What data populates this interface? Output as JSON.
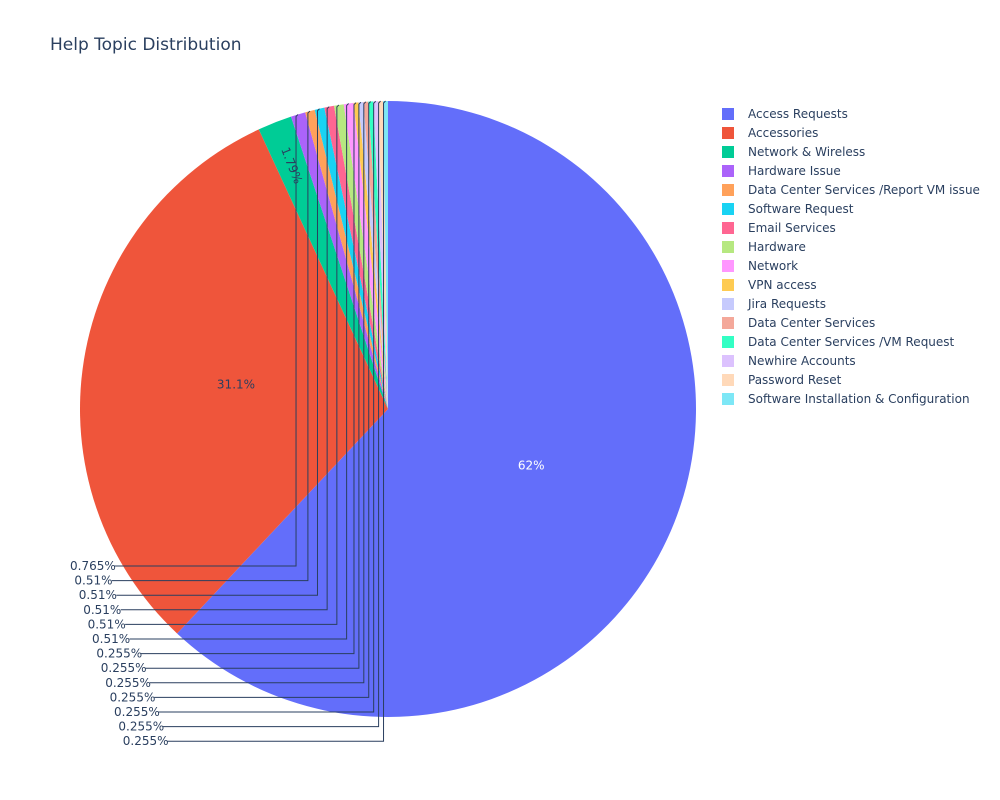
{
  "chart_data": {
    "type": "pie",
    "title": "Help Topic Distribution",
    "legend_position": "right",
    "slices": [
      {
        "label": "Access Requests",
        "value": 62,
        "text": "62%",
        "color": "#636efa"
      },
      {
        "label": "Accessories",
        "value": 31.1,
        "text": "31.1%",
        "color": "#ef553b"
      },
      {
        "label": "Network & Wireless",
        "value": 1.79,
        "text": "1.79%",
        "color": "#00cc96"
      },
      {
        "label": "Hardware Issue",
        "value": 0.765,
        "text": "0.765%",
        "color": "#ab63fa"
      },
      {
        "label": "Data Center Services /Report VM issue",
        "value": 0.51,
        "text": "0.51%",
        "color": "#ffa15a"
      },
      {
        "label": "Software Request",
        "value": 0.51,
        "text": "0.51%",
        "color": "#19d3f3"
      },
      {
        "label": "Email Services",
        "value": 0.51,
        "text": "0.51%",
        "color": "#ff6692"
      },
      {
        "label": "Hardware",
        "value": 0.51,
        "text": "0.51%",
        "color": "#b6e880"
      },
      {
        "label": "Network",
        "value": 0.51,
        "text": "0.51%",
        "color": "#ff97ff"
      },
      {
        "label": "VPN access",
        "value": 0.255,
        "text": "0.255%",
        "color": "#fecb52"
      },
      {
        "label": "Jira Requests",
        "value": 0.255,
        "text": "0.255%",
        "color": "#c6cafd"
      },
      {
        "label": "Data Center Services",
        "value": 0.255,
        "text": "0.255%",
        "color": "#f4a89a"
      },
      {
        "label": "Data Center Services /VM Request",
        "value": 0.255,
        "text": "0.255%",
        "color": "#33ffc4"
      },
      {
        "label": "Newhire Accounts",
        "value": 0.255,
        "text": "0.255%",
        "color": "#dcc2fe"
      },
      {
        "label": "Password Reset",
        "value": 0.255,
        "text": "0.255%",
        "color": "#ffd9b9"
      },
      {
        "label": "Software Installation & Configuration",
        "value": 0.255,
        "text": "0.255%",
        "color": "#7de7f6"
      }
    ]
  }
}
